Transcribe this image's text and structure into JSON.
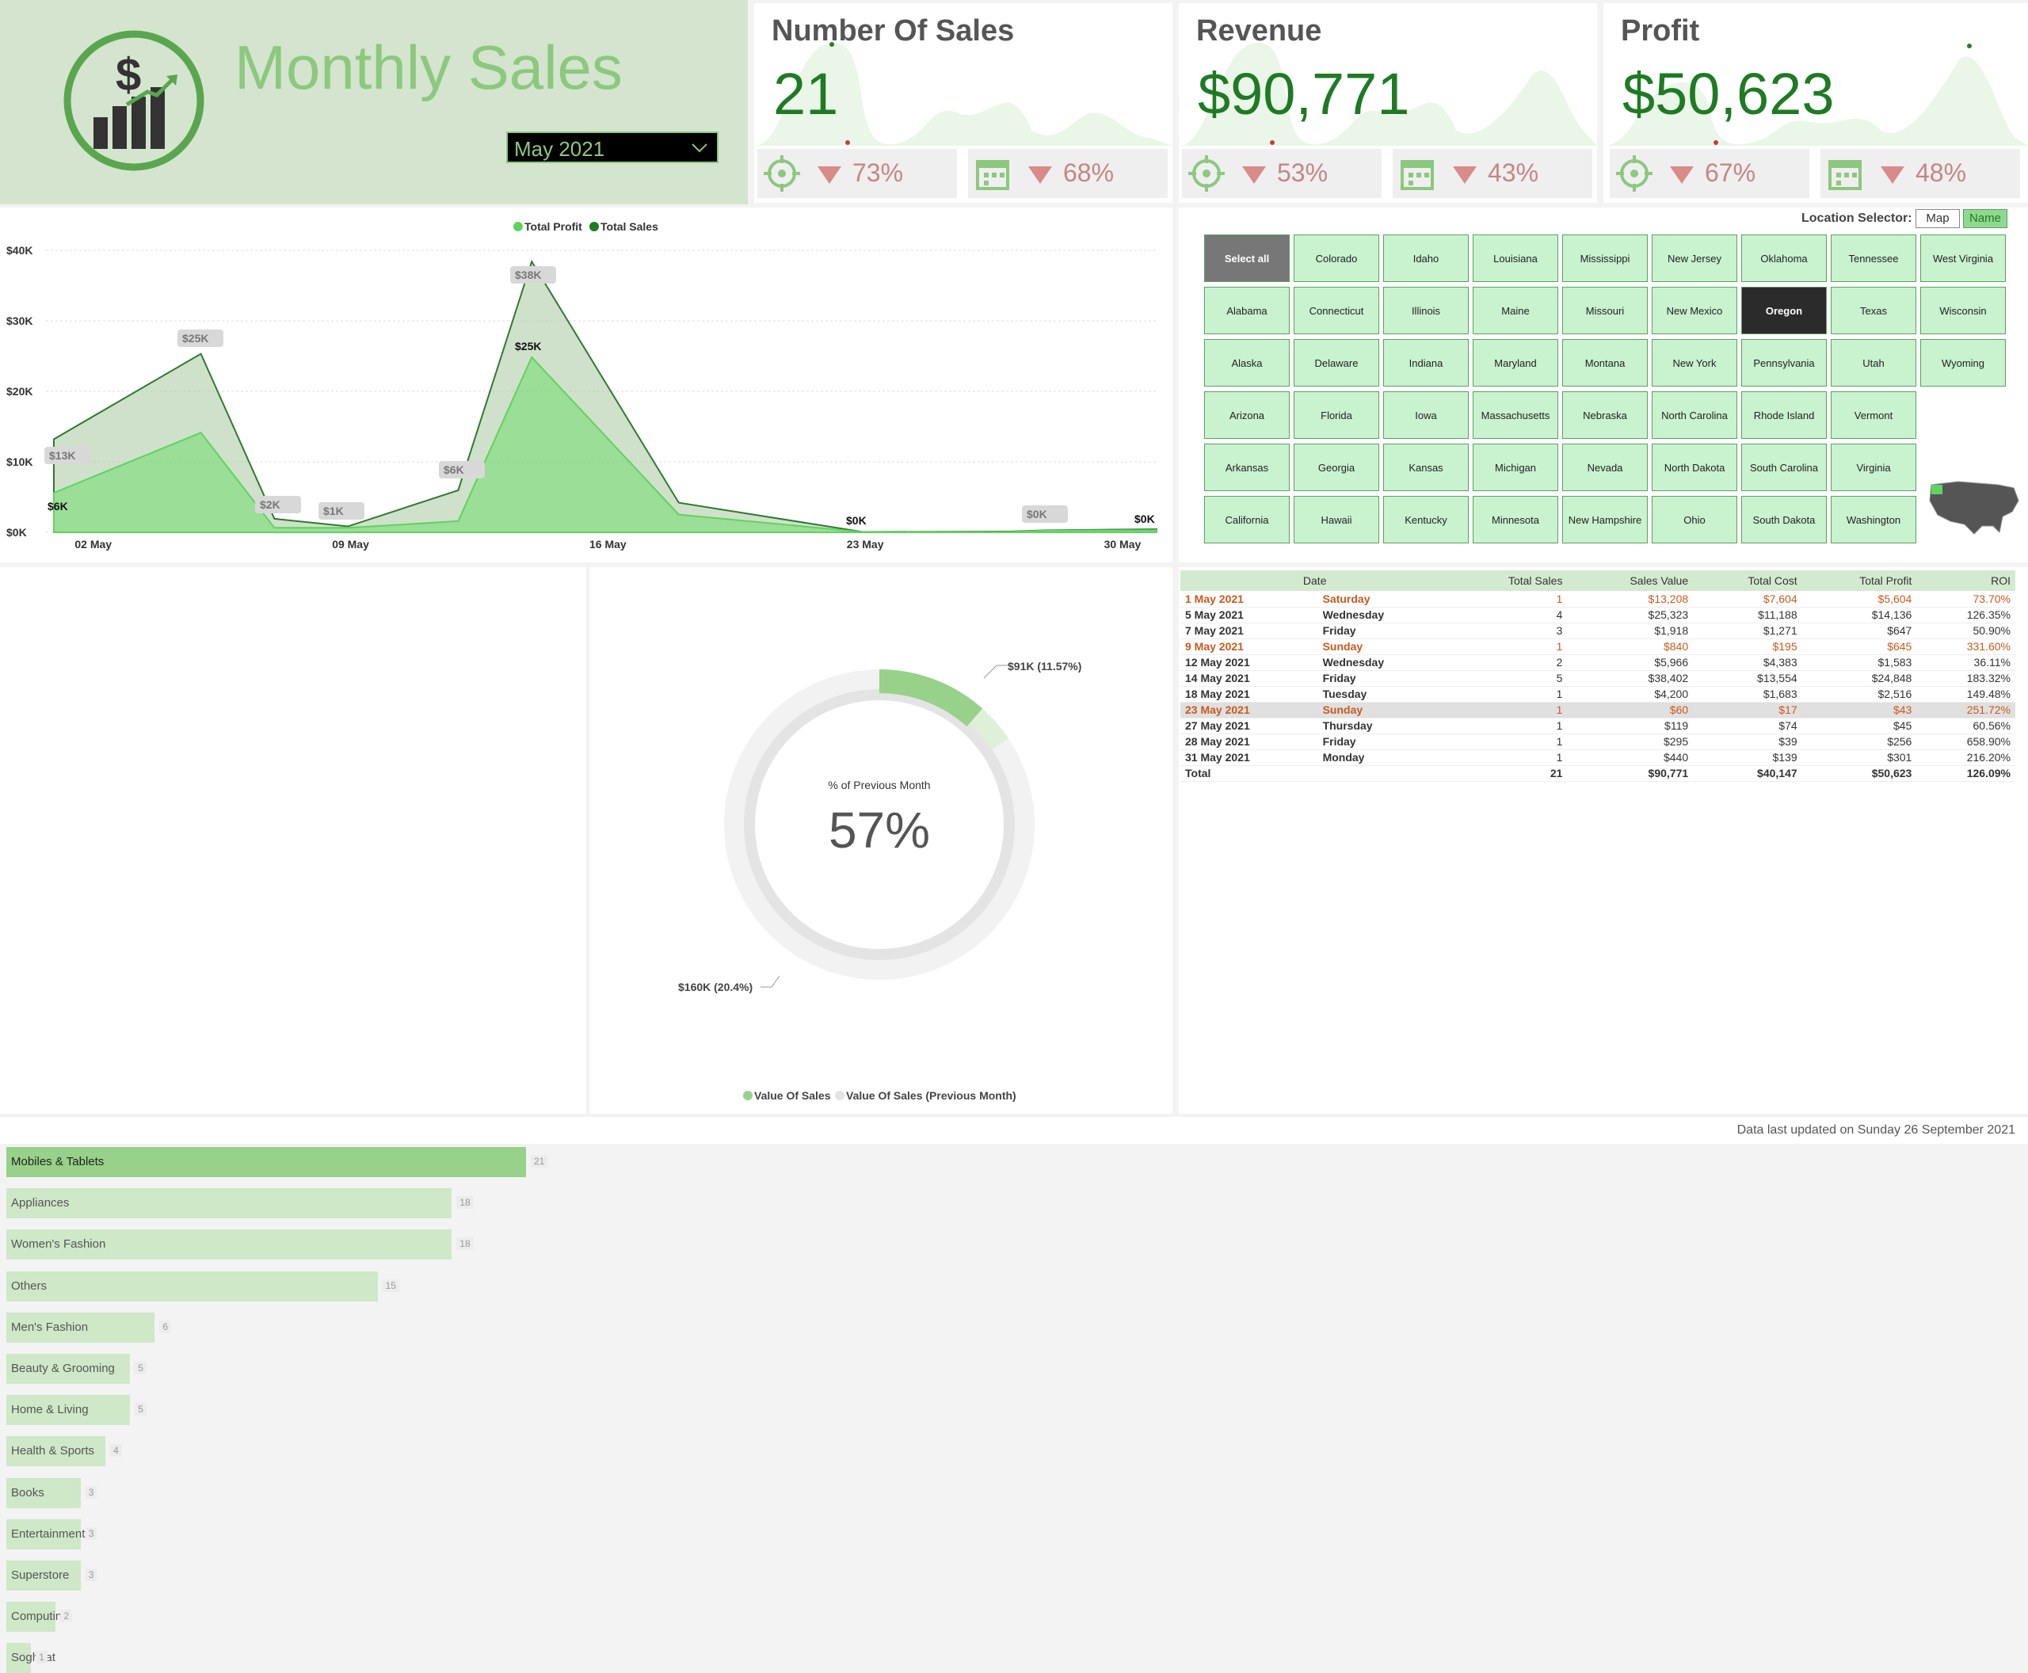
{
  "header": {
    "title": "Monthly Sales",
    "month": "May 2021"
  },
  "kpis": [
    {
      "title": "Number Of Sales",
      "value": "21",
      "vs_target": "73%",
      "vs_prev": "68%"
    },
    {
      "title": "Revenue",
      "value": "$90,771",
      "vs_target": "53%",
      "vs_prev": "43%"
    },
    {
      "title": "Profit",
      "value": "$50,623",
      "vs_target": "67%",
      "vs_prev": "48%"
    }
  ],
  "colors": {
    "accent": "#8cc87e",
    "dark_green": "#1f7a24",
    "profit": "#5fd35f",
    "sales": "#1f7a24",
    "down": "#d98a8a"
  },
  "area_chart": {
    "legend": [
      "Total Profit",
      "Total Sales"
    ],
    "y_ticks": [
      "$40K",
      "$30K",
      "$20K",
      "$10K",
      "$0K"
    ],
    "x_ticks": [
      "02 May",
      "09 May",
      "16 May",
      "23 May",
      "30 May"
    ],
    "labels": [
      "$6K",
      "$13K",
      "$25K",
      "$2K",
      "$1K",
      "$6K",
      "$38K",
      "$25K",
      "$0K",
      "$0K",
      "$0K"
    ]
  },
  "chart_data": [
    {
      "type": "area",
      "title": "",
      "x": [
        "1 May",
        "5 May",
        "7 May",
        "9 May",
        "12 May",
        "14 May",
        "18 May",
        "23 May",
        "27 May",
        "28 May",
        "31 May"
      ],
      "series": [
        {
          "name": "Total Sales",
          "values": [
            13208,
            25323,
            1918,
            840,
            5966,
            38402,
            4200,
            60,
            119,
            295,
            440
          ]
        },
        {
          "name": "Total Profit",
          "values": [
            5604,
            14136,
            647,
            645,
            1583,
            24848,
            2516,
            43,
            45,
            256,
            301
          ]
        }
      ],
      "ylim": [
        0,
        40000
      ],
      "legend": "top-center"
    },
    {
      "type": "bar",
      "categories": [
        "Mobiles & Tablets",
        "Appliances",
        "Women's Fashion",
        "Others",
        "Men's Fashion",
        "Beauty & Grooming",
        "Home & Living",
        "Health & Sports",
        "Books",
        "Entertainment",
        "Superstore",
        "Computing",
        "Soghaat"
      ],
      "values": [
        21,
        18,
        18,
        15,
        6,
        5,
        5,
        4,
        3,
        3,
        3,
        2,
        1
      ]
    },
    {
      "type": "pie",
      "title": "% of Previous Month",
      "center_value": "57%",
      "series": [
        {
          "name": "Value Of Sales",
          "value": 91,
          "label": "$91K (11.57%)"
        },
        {
          "name": "Value Of Sales (Previous Month)",
          "value": 160,
          "label": "$160K (20.4%)"
        }
      ]
    }
  ],
  "location": {
    "label": "Location Selector:",
    "options": [
      "Map",
      "Name"
    ],
    "states": [
      "Select all",
      "Colorado",
      "Idaho",
      "Louisiana",
      "Mississippi",
      "New Jersey",
      "Oklahoma",
      "Tennessee",
      "West Virginia",
      "Alabama",
      "Connecticut",
      "Illinois",
      "Maine",
      "Missouri",
      "New Mexico",
      "Oregon",
      "Texas",
      "Wisconsin",
      "Alaska",
      "Delaware",
      "Indiana",
      "Maryland",
      "Montana",
      "New York",
      "Pennsylvania",
      "Utah",
      "Wyoming",
      "Arizona",
      "Florida",
      "Iowa",
      "Massachusetts",
      "Nebraska",
      "North Carolina",
      "Rhode Island",
      "Vermont",
      "",
      "Arkansas",
      "Georgia",
      "Kansas",
      "Michigan",
      "Nevada",
      "North Dakota",
      "South Carolina",
      "Virginia",
      "",
      "California",
      "Hawaii",
      "Kentucky",
      "Minnesota",
      "New Hampshire",
      "Ohio",
      "South Dakota",
      "Washington",
      ""
    ],
    "selected": "Oregon"
  },
  "table": {
    "headers": [
      "Date",
      "Total Sales",
      "Sales Value",
      "Total Cost",
      "Total Profit",
      "ROI"
    ],
    "rows": [
      [
        "1 May 2021",
        "Saturday",
        "1",
        "$13,208",
        "$7,604",
        "$5,604",
        "73.70%"
      ],
      [
        "5 May 2021",
        "Wednesday",
        "4",
        "$25,323",
        "$11,188",
        "$14,136",
        "126.35%"
      ],
      [
        "7 May 2021",
        "Friday",
        "3",
        "$1,918",
        "$1,271",
        "$647",
        "50.90%"
      ],
      [
        "9 May 2021",
        "Sunday",
        "1",
        "$840",
        "$195",
        "$645",
        "331.60%"
      ],
      [
        "12 May 2021",
        "Wednesday",
        "2",
        "$5,966",
        "$4,383",
        "$1,583",
        "36.11%"
      ],
      [
        "14 May 2021",
        "Friday",
        "5",
        "$38,402",
        "$13,554",
        "$24,848",
        "183.32%"
      ],
      [
        "18 May 2021",
        "Tuesday",
        "1",
        "$4,200",
        "$1,683",
        "$2,516",
        "149.48%"
      ],
      [
        "23 May 2021",
        "Sunday",
        "1",
        "$60",
        "$17",
        "$43",
        "251.72%"
      ],
      [
        "27 May 2021",
        "Thursday",
        "1",
        "$119",
        "$74",
        "$45",
        "60.56%"
      ],
      [
        "28 May 2021",
        "Friday",
        "1",
        "$295",
        "$39",
        "$256",
        "658.90%"
      ],
      [
        "31 May 2021",
        "Monday",
        "1",
        "$440",
        "$139",
        "$301",
        "216.20%"
      ]
    ],
    "total": [
      "Total",
      "",
      "21",
      "$90,771",
      "$40,147",
      "$50,623",
      "126.09%"
    ]
  },
  "donut_legend": [
    "Value Of Sales",
    "Value Of Sales (Previous Month)"
  ],
  "footer": "Data last updated on Sunday 26 September 2021"
}
